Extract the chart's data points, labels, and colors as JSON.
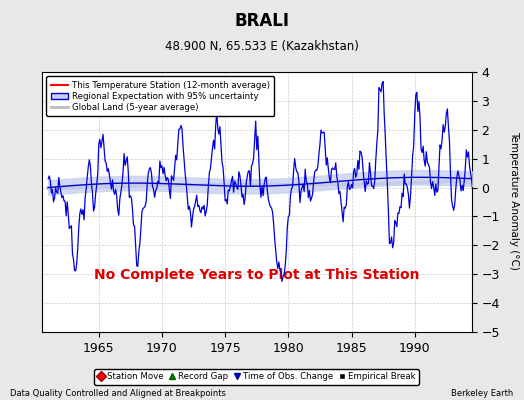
{
  "title": "BRALI",
  "subtitle": "48.900 N, 65.533 E (Kazakhstan)",
  "annotation": "No Complete Years to Plot at This Station",
  "xlabel_left": "Data Quality Controlled and Aligned at Breakpoints",
  "xlabel_right": "Berkeley Earth",
  "ylabel": "Temperature Anomaly (°C)",
  "xlim": [
    1960.5,
    1994.5
  ],
  "ylim": [
    -5,
    4
  ],
  "yticks": [
    -5,
    -4,
    -3,
    -2,
    -1,
    0,
    1,
    2,
    3,
    4
  ],
  "xticks": [
    1965,
    1970,
    1975,
    1980,
    1985,
    1990
  ],
  "bg_color": "#e8e8e8",
  "plot_bg_color": "#ffffff",
  "station_line_color": "#0000dd",
  "regional_line_color": "#0000cc",
  "regional_fill_color": "#c8d0f0",
  "global_line_color": "#bbbbbb",
  "annotation_color": "#dd0000",
  "legend_station_color": "#ff0000",
  "legend_station": "This Temperature Station (12-month average)",
  "legend_regional": "Regional Expectation with 95% uncertainty",
  "legend_global": "Global Land (5-year average)",
  "legend_station_move": "Station Move",
  "legend_record_gap": "Record Gap",
  "legend_obs_change": "Time of Obs. Change",
  "legend_emp_break": "Empirical Break",
  "seed": 7,
  "n_years": 34,
  "start_year": 1961
}
